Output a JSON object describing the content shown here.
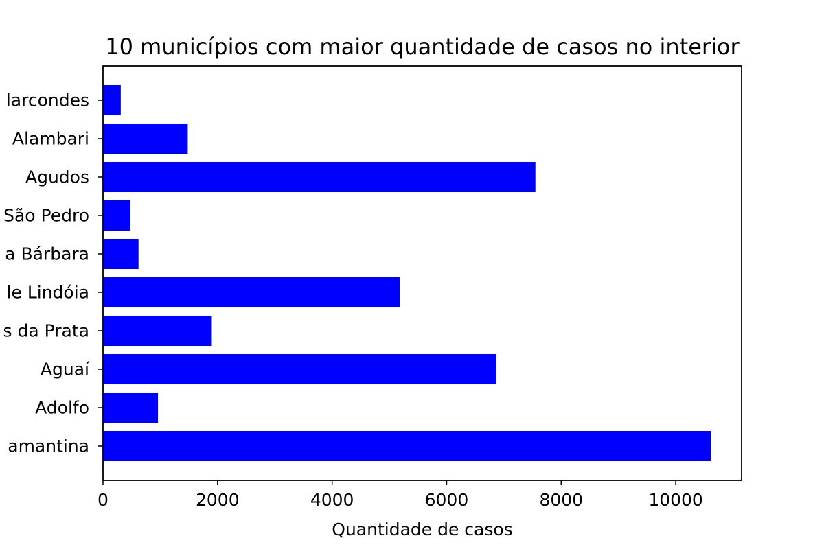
{
  "chart_data": {
    "type": "bar",
    "orientation": "horizontal",
    "title": "10 municípios com maior quantidade de casos no interior",
    "xlabel": "Quantidade de casos",
    "ylabel": "",
    "categories": [
      "Marcondes",
      "Alambari",
      "Agudos",
      "São Pedro",
      "Santa Bárbara",
      "de Lindóia",
      "Águas da Prata",
      "Aguaí",
      "Adolfo",
      "Diamantina"
    ],
    "category_labels_visible": [
      "larcondes",
      "Alambari",
      "Agudos",
      "São Pedro",
      "a Bárbara",
      "le Lindóia",
      "s da Prata",
      "Aguaí",
      "Adolfo",
      "amantina"
    ],
    "values": [
      310,
      1480,
      7550,
      480,
      620,
      5180,
      1900,
      6870,
      960,
      10620
    ],
    "xlim": [
      0,
      11150
    ],
    "xticks": [
      0,
      2000,
      4000,
      6000,
      8000,
      10000
    ],
    "bar_color": "#0000ff",
    "grid": false,
    "legend": "none"
  }
}
